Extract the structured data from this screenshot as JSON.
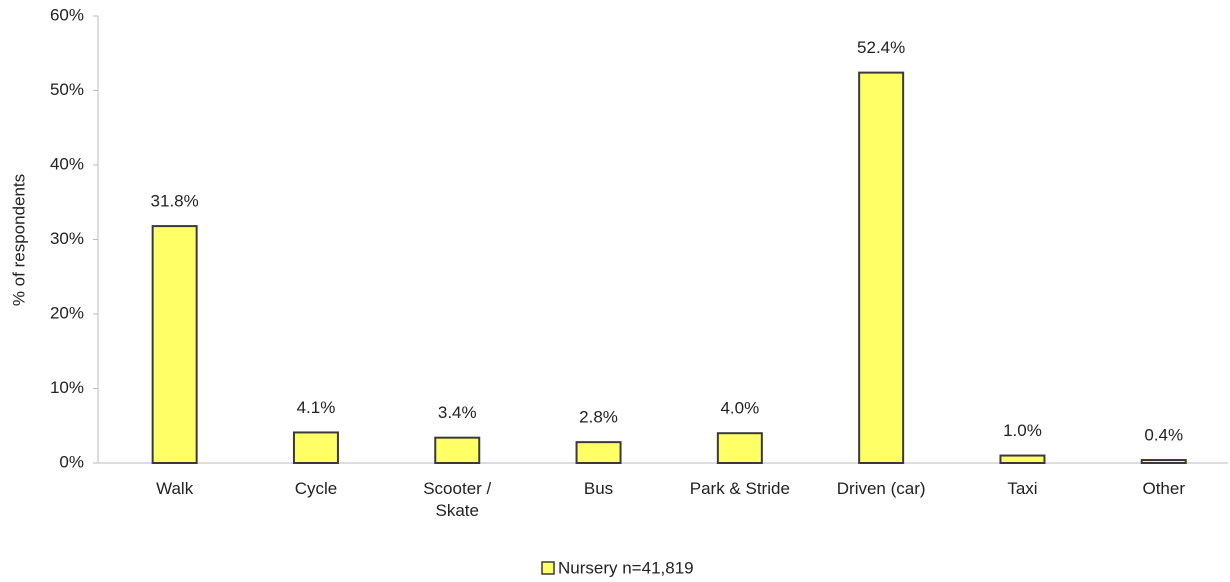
{
  "chart_data": {
    "type": "bar",
    "y_label": "% of respondents",
    "categories": [
      "Walk",
      "Cycle",
      "Scooter /\nSkate",
      "Bus",
      "Park & Stride",
      "Driven (car)",
      "Taxi",
      "Other"
    ],
    "series": [
      {
        "name": "Nursery n=41,819",
        "color": "#ffff66",
        "values": [
          31.8,
          4.1,
          3.4,
          2.8,
          4.0,
          52.4,
          1.0,
          0.4
        ],
        "value_labels": [
          "31.8%",
          "4.1%",
          "3.4%",
          "2.8%",
          "4.0%",
          "52.4%",
          "1.0%",
          "0.4%"
        ]
      }
    ],
    "ylim": [
      0,
      60
    ],
    "yticks": [
      {
        "value": 0,
        "label": "0%"
      },
      {
        "value": 10,
        "label": "10%"
      },
      {
        "value": 20,
        "label": "20%"
      },
      {
        "value": 30,
        "label": "30%"
      },
      {
        "value": 40,
        "label": "40%"
      },
      {
        "value": 50,
        "label": "50%"
      },
      {
        "value": 60,
        "label": "60%"
      }
    ],
    "legend": "bottom"
  }
}
